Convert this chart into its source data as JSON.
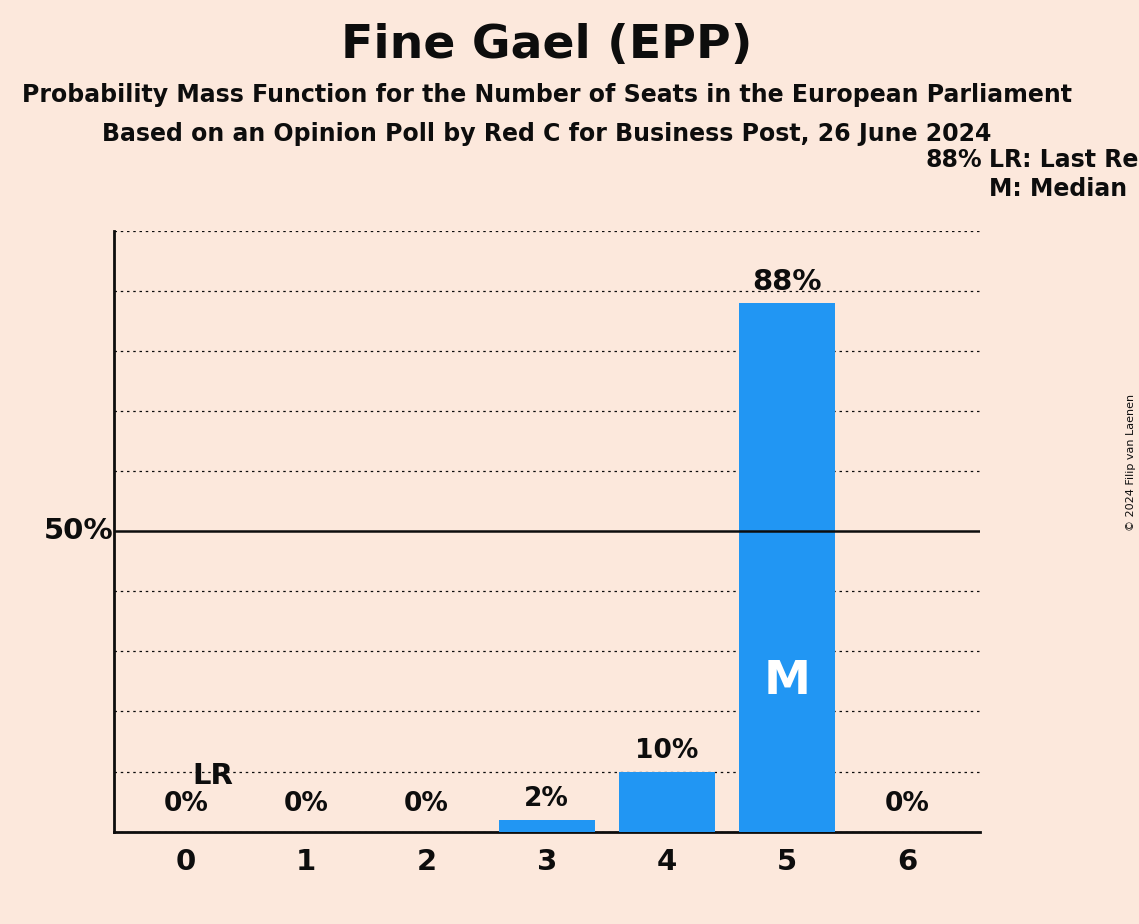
{
  "title": "Fine Gael (EPP)",
  "subtitle1": "Probability Mass Function for the Number of Seats in the European Parliament",
  "subtitle2": "Based on an Opinion Poll by Red C for Business Post, 26 June 2024",
  "copyright": "© 2024 Filip van Laenen",
  "categories": [
    0,
    1,
    2,
    3,
    4,
    5,
    6
  ],
  "values": [
    0,
    0,
    0,
    2,
    10,
    88,
    0
  ],
  "bar_color": "#2196F3",
  "background_color": "#fce8dc",
  "text_color": "#0d0d0d",
  "median_seat": 5,
  "last_result_seat": 0,
  "legend_lr": "LR: Last Result",
  "legend_m": "M: Median",
  "ymax": 100,
  "dotted_lines": [
    0,
    10,
    20,
    30,
    40,
    50,
    60,
    70,
    80,
    90,
    100
  ]
}
